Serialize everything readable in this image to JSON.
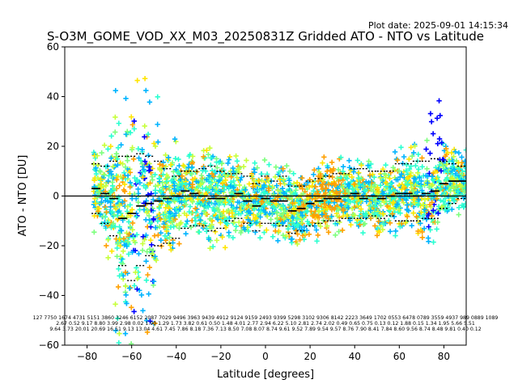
{
  "chart_data": {
    "type": "scatter",
    "plot_date": "Plot date: 2025-09-01 14:15:34",
    "title": "S-O3M_GOME_VOD_XX_M03_20250831Z Gridded ATO - NTO vs Latitude",
    "xlabel": "Latitude [degrees]",
    "ylabel": "ATO - NTO [DU]",
    "xlim": [
      -90,
      90
    ],
    "ylim": [
      -60,
      60
    ],
    "xticks": [
      -80,
      -60,
      -40,
      -20,
      0,
      20,
      40,
      60,
      80
    ],
    "xtick_labels": [
      "−80",
      "−60",
      "−40",
      "−20",
      "0",
      "20",
      "40",
      "60",
      "80"
    ],
    "yticks": [
      -60,
      -40,
      -20,
      0,
      20,
      40,
      60
    ],
    "ytick_labels": [
      "−60",
      "−40",
      "−20",
      "0",
      "20",
      "40",
      "60"
    ],
    "zero_line": 0,
    "marker": "+",
    "colors": {
      "background": "#ffffff",
      "axis": "#000000",
      "blue": "#0000ff",
      "sky": "#00b4ff",
      "cyan_green": "#2affd0",
      "green": "#7dff7d",
      "yellow": "#ffe500",
      "orange": "#ffa000",
      "lime": "#c6ff3a",
      "mean_line": "#000000"
    },
    "bin_lat": [
      -76,
      -72,
      -68,
      -64,
      -60,
      -56,
      -52,
      -48,
      -44,
      -40,
      -36,
      -32,
      -28,
      -24,
      -20,
      -16,
      -12,
      -8,
      -4,
      0,
      4,
      8,
      12,
      16,
      20,
      24,
      28,
      32,
      36,
      40,
      44,
      48,
      52,
      56,
      60,
      64,
      68,
      72,
      76,
      80,
      84,
      88
    ],
    "bin_mean": [
      3,
      1,
      -1,
      -9,
      -7,
      -4,
      -3,
      -2,
      -1,
      0,
      2,
      1,
      0,
      -1,
      -1,
      0,
      1,
      -2,
      -4,
      -1,
      -2,
      -2,
      -6,
      -5,
      -3,
      -2,
      -1,
      -1,
      0,
      1,
      -1,
      0,
      -1,
      0,
      1,
      1,
      0,
      1,
      2,
      5,
      6,
      6
    ],
    "bin_upper": [
      13,
      12,
      14,
      16,
      16,
      17,
      16,
      14,
      11,
      8,
      10,
      10,
      11,
      12,
      10,
      9,
      9,
      8,
      5,
      8,
      6,
      8,
      4,
      4,
      6,
      7,
      8,
      9,
      9,
      11,
      11,
      10,
      10,
      10,
      13,
      13,
      14,
      14,
      15,
      14,
      13,
      12
    ],
    "bin_lower": [
      -7,
      -11,
      -16,
      -28,
      -34,
      -28,
      -24,
      -20,
      -19,
      -17,
      -13,
      -12,
      -12,
      -14,
      -13,
      -10,
      -9,
      -11,
      -14,
      -11,
      -11,
      -12,
      -15,
      -14,
      -12,
      -11,
      -10,
      -10,
      -9,
      -9,
      -9,
      -8,
      -9,
      -8,
      -10,
      -10,
      -10,
      -9,
      -9,
      -5,
      -3,
      -1
    ],
    "stats_table": [
      {
        "col": "127",
        "row2": "2.67",
        "row3": "9.64"
      },
      {
        "col": "7750",
        "row2": "0.52",
        "row3": "3.73"
      },
      {
        "col": "1674",
        "row2": "9.17",
        "row3": "20.01"
      },
      {
        "col": "4731",
        "row2": "8.80",
        "row3": "20.69"
      },
      {
        "col": "5151",
        "row2": "3.99",
        "row3": "16.51"
      },
      {
        "col": "3860",
        "row2": "2.98",
        "row3": "9.13"
      },
      {
        "col": "3246",
        "row2": "0.02",
        "row3": "13.04"
      },
      {
        "col": "6152",
        "row2": "1.90",
        "row3": "4.61"
      },
      {
        "col": "2087",
        "row2": "1.29",
        "row3": "7.45"
      },
      {
        "col": "7029",
        "row2": "1.73",
        "row3": "7.86"
      },
      {
        "col": "9496",
        "row2": "3.82",
        "row3": "8.18"
      },
      {
        "col": "3963",
        "row2": "0.61",
        "row3": "7.36"
      },
      {
        "col": "9439",
        "row2": "0.50",
        "row3": "7.13"
      },
      {
        "col": "4912",
        "row2": "1.48",
        "row3": "8.50"
      },
      {
        "col": "9124",
        "row2": "4.01",
        "row3": "7.08"
      },
      {
        "col": "9159",
        "row2": "2.77",
        "row3": "8.07"
      },
      {
        "col": "2493",
        "row2": "2.94",
        "row3": "8.74"
      },
      {
        "col": "9399",
        "row2": "6.22",
        "row3": "9.61"
      },
      {
        "col": "5298",
        "row2": "5.10",
        "row3": "9.52"
      },
      {
        "col": "3102",
        "row2": "2.81",
        "row3": "7.89"
      },
      {
        "col": "9306",
        "row2": "2.74",
        "row3": "9.54"
      },
      {
        "col": "8142",
        "row2": "2.02",
        "row3": "9.57"
      },
      {
        "col": "2223",
        "row2": "0.49",
        "row3": "8.76"
      },
      {
        "col": "3649",
        "row2": "0.65",
        "row3": "7.90"
      },
      {
        "col": "1702",
        "row2": "0.75",
        "row3": "8.41"
      },
      {
        "col": "0553",
        "row2": "0.13",
        "row3": "7.84"
      },
      {
        "col": "6478",
        "row2": "0.12",
        "row3": "8.60"
      },
      {
        "col": "0789",
        "row2": "1.88",
        "row3": "9.56"
      },
      {
        "col": "3559",
        "row2": "0.15",
        "row3": "8.74"
      },
      {
        "col": "4937",
        "row2": "1.34",
        "row3": "8.48"
      },
      {
        "col": "989",
        "row2": "1.95",
        "row3": "9.81"
      },
      {
        "col": "0889",
        "row2": "5.66",
        "row3": "0.40"
      },
      {
        "col": "1089",
        "row2": "5.51",
        "row3": "0.12"
      }
    ],
    "stats_header": "127 7750 1674 4731 5151 3860 3246 6152 2087 7029 9496 3963 9439 4912 9124 9159 2493 9399 5298 3102 9306 8142 2223 3649 1702 0553 6478 0789 3559 4937 989 0889 1089",
    "stats_mean": "2.67 0.52 9.17 8.80 3.99 2.98 0.02 1.90 1.29 1.73 3.82 0.61 0.50 1.48 4.01 2.77 2.94 6.22 5.10 2.81 2.74 2.02 0.49 0.65 0.75 0.13 0.12 1.88 0.15 1.34 1.95 5.66 5.51",
    "stats_std": "9.64 3.73 20.01 20.69 16.51 9.13 13.04 4.61 7.45 7.86 8.18 7.36 7.13 8.50 7.08 8.07 8.74 9.61 9.52 7.89 9.54 9.57 8.76 7.90 8.41 7.84 8.60 9.56 8.74 8.48 9.81 0.40 0.12"
  }
}
